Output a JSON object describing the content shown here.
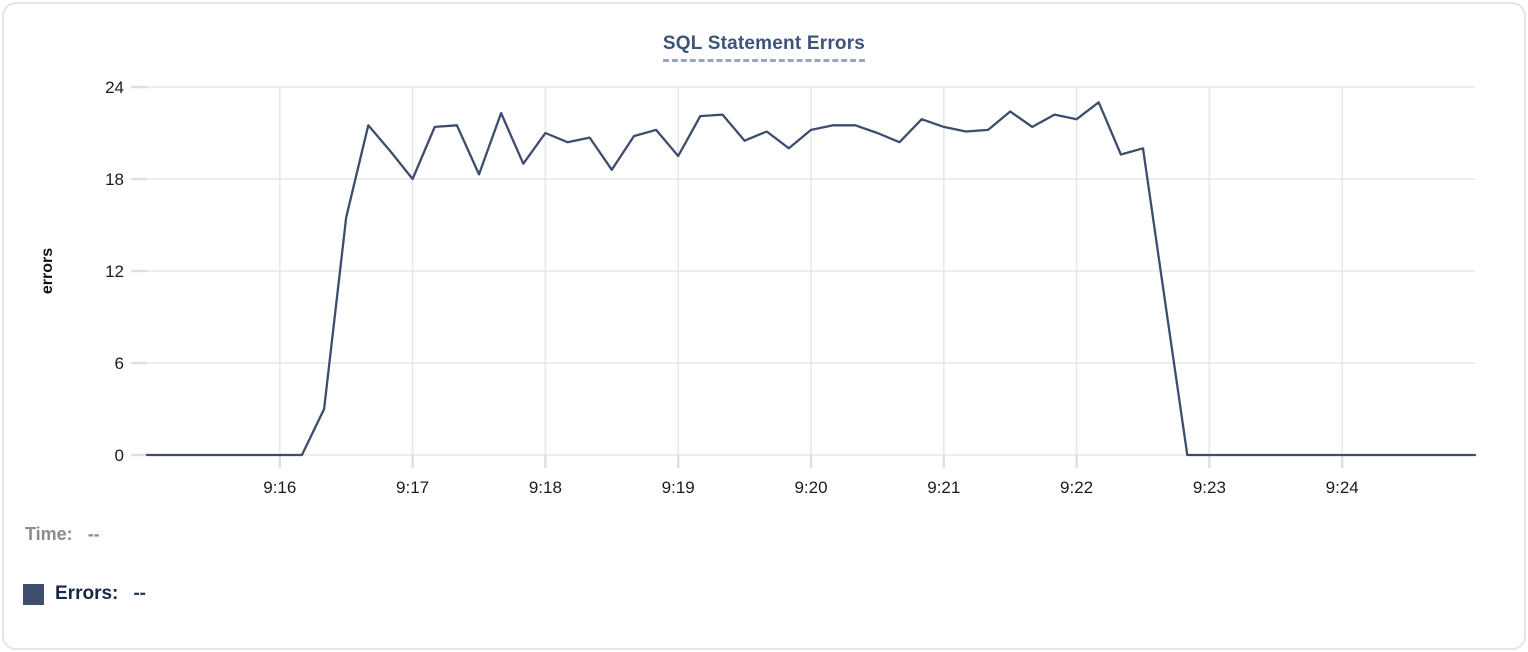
{
  "chart": {
    "title": "SQL Statement Errors"
  },
  "chart_data": {
    "type": "line",
    "title": "SQL Statement Errors",
    "xlabel": "",
    "ylabel": "errors",
    "ylim": [
      0,
      24
    ],
    "y_ticks": [
      0,
      6,
      12,
      18,
      24
    ],
    "x_ticks": [
      "9:16",
      "9:17",
      "9:18",
      "9:19",
      "9:20",
      "9:21",
      "9:22",
      "9:23",
      "9:24"
    ],
    "x_range_start": "9:15:00",
    "x_range_end": "9:25:00",
    "sample_interval_seconds": 10,
    "grid": true,
    "legend_position": "bottom-left",
    "line_color": "#3e4d6e",
    "series": [
      {
        "name": "Errors",
        "x_start": "9:15:00",
        "values": [
          0,
          0,
          0,
          0,
          0,
          0,
          0,
          0,
          3,
          15.5,
          21.5,
          19.8,
          18,
          21.4,
          21.5,
          18.3,
          22.3,
          19,
          21,
          20.4,
          20.7,
          18.6,
          20.8,
          21.2,
          19.5,
          22.1,
          22.2,
          20.5,
          21.1,
          20,
          21.2,
          21.5,
          21.5,
          21,
          20.4,
          21.9,
          21.4,
          21.1,
          21.2,
          22.4,
          21.4,
          22.2,
          21.9,
          23,
          19.6,
          20,
          10,
          0,
          0,
          0,
          0,
          0,
          0,
          0,
          0,
          0,
          0,
          0,
          0,
          0,
          0
        ]
      }
    ]
  },
  "readout": {
    "time_label": "Time:",
    "time_value": "--",
    "errors_label": "Errors:",
    "errors_value": "--",
    "swatch_color": "#3e4d6e"
  },
  "colors": {
    "accent_navy": "#3e4d6e",
    "title_navy": "#3e5378",
    "title_underline": "#9aa5c0",
    "grid": "#e7e7e9",
    "tick": "#dfdfe2",
    "axis_text": "#1c1c1f",
    "muted_gray": "#8b8b90"
  }
}
